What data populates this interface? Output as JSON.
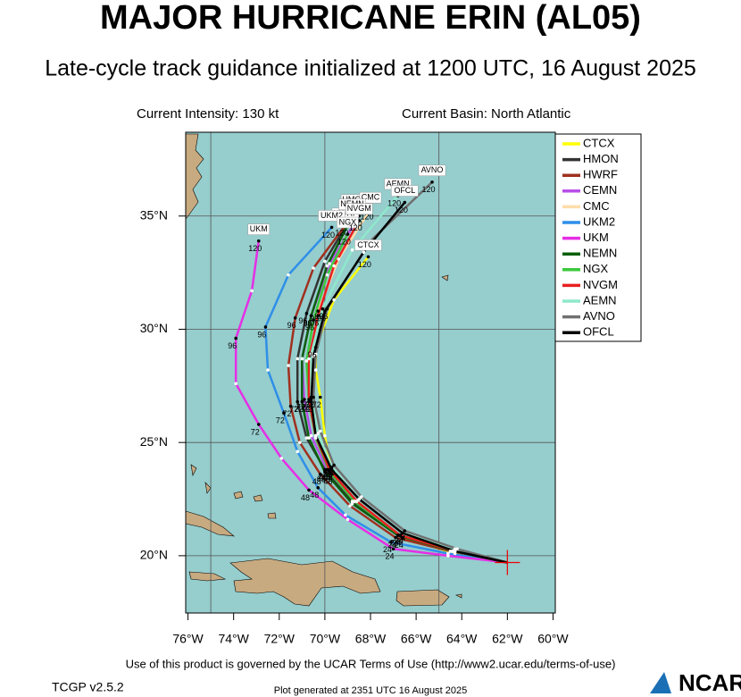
{
  "chart_data": {
    "type": "track",
    "title": "MAJOR HURRICANE ERIN (AL05)",
    "subtitle": "Late-cycle track guidance initialized at 1200 UTC, 16 August 2025",
    "intensity": "Current Intensity: 130 kt",
    "basin": "Current Basin: North Atlantic",
    "footer": "Use of this product is governed by the UCAR Terms of Use (http://www2.ucar.edu/terms-of-use)",
    "version": "TCGP v2.5.2",
    "generated": "Plot generated at 2351 UTC   16 August 2025",
    "logo": "NCAR",
    "xlim": [
      -76.1,
      -59.9
    ],
    "ylim": [
      17.47,
      38.7
    ],
    "xticks": [
      {
        "value": -76,
        "label": "76°W"
      },
      {
        "value": -74,
        "label": "74°W"
      },
      {
        "value": -72,
        "label": "72°W"
      },
      {
        "value": -70,
        "label": "70°W"
      },
      {
        "value": -68,
        "label": "68°W"
      },
      {
        "value": -66,
        "label": "66°W"
      },
      {
        "value": -64,
        "label": "64°W"
      },
      {
        "value": -62,
        "label": "62°W"
      },
      {
        "value": -60,
        "label": "60°W"
      }
    ],
    "yticks": [
      {
        "value": 20,
        "label": "20°N"
      },
      {
        "value": 25,
        "label": "25°N"
      },
      {
        "value": 30,
        "label": "30°N"
      },
      {
        "value": 35,
        "label": "35°N"
      }
    ],
    "xgrid": [
      -75,
      -70,
      -65
    ],
    "grid": true,
    "legend": "right",
    "hours": [
      0,
      12,
      24,
      36,
      48,
      60,
      72,
      84,
      96,
      108,
      120
    ],
    "labeled_hours": [
      24,
      48,
      72,
      96,
      120
    ],
    "series": [
      {
        "name": "CTCX",
        "color": "#ffff00",
        "lon": [
          -62.0,
          -64.3,
          -66.6,
          -68.6,
          -69.7,
          -70.0,
          -70.2,
          -70.4,
          -70.4,
          -69.6,
          -68.1
        ],
        "lat": [
          19.7,
          20.1,
          20.8,
          22.4,
          23.6,
          25.3,
          27.0,
          28.2,
          29.2,
          31.3,
          33.2
        ]
      },
      {
        "name": "HMON",
        "color": "#333333",
        "lon": [
          -62.0,
          -64.4,
          -66.8,
          -68.8,
          -70.0,
          -70.8,
          -71.2,
          -71.2,
          -70.8,
          -70.0,
          -68.7
        ],
        "lat": [
          19.7,
          20.2,
          20.9,
          22.4,
          23.8,
          25.2,
          26.8,
          28.7,
          30.7,
          33.0,
          35.2
        ]
      },
      {
        "name": "HWRF",
        "color": "#a0301f",
        "lon": [
          -62.0,
          -64.5,
          -66.9,
          -68.9,
          -70.2,
          -71.1,
          -71.5,
          -71.6,
          -71.3,
          -70.5,
          -69.1
        ],
        "lat": [
          19.7,
          20.2,
          20.8,
          22.2,
          23.6,
          25.0,
          26.6,
          28.4,
          30.5,
          32.7,
          34.6
        ]
      },
      {
        "name": "CEMN",
        "color": "#b84fe8",
        "lon": [
          -62.0,
          -64.4,
          -66.7,
          -68.7,
          -69.9,
          -70.6,
          -70.9,
          -71.0,
          -70.6,
          -69.8,
          -68.5
        ],
        "lat": [
          19.7,
          20.2,
          20.9,
          22.4,
          23.8,
          25.3,
          26.9,
          28.7,
          30.6,
          32.9,
          35.0
        ]
      },
      {
        "name": "CMC",
        "color": "#ffdcaa",
        "lon": [
          -62.0,
          -64.3,
          -66.6,
          -68.5,
          -69.7,
          -70.3,
          -70.6,
          -70.6,
          -70.3,
          -69.4,
          -68.0
        ],
        "lat": [
          19.7,
          20.3,
          21.0,
          22.5,
          23.9,
          25.4,
          27.0,
          28.9,
          30.8,
          33.1,
          35.3
        ]
      },
      {
        "name": "UKM2",
        "color": "#2f8fe8",
        "lon": [
          -62.0,
          -64.6,
          -67.1,
          -69.1,
          -70.3,
          -71.2,
          -71.8,
          -72.5,
          -72.6,
          -71.6,
          -69.7
        ],
        "lat": [
          19.7,
          20.1,
          20.6,
          21.8,
          23.0,
          24.6,
          26.3,
          28.2,
          30.1,
          32.4,
          34.5
        ]
      },
      {
        "name": "UKM",
        "color": "#e62ee6",
        "lon": [
          -62.0,
          -64.6,
          -67.0,
          -69.0,
          -70.7,
          -71.9,
          -72.9,
          -73.9,
          -73.9,
          -73.2,
          -72.9
        ],
        "lat": [
          19.7,
          20.0,
          20.3,
          21.6,
          22.9,
          24.3,
          25.8,
          27.6,
          29.6,
          31.7,
          33.9
        ]
      },
      {
        "name": "NEMN",
        "color": "#0a5f0a",
        "lon": [
          -62.0,
          -64.4,
          -66.8,
          -68.8,
          -70.0,
          -70.7,
          -71.0,
          -71.0,
          -70.6,
          -69.9,
          -68.8
        ],
        "lat": [
          19.7,
          20.2,
          20.9,
          22.3,
          23.7,
          25.2,
          26.8,
          28.7,
          30.6,
          32.8,
          35.0
        ]
      },
      {
        "name": "NGX",
        "color": "#3cc83c",
        "lon": [
          -62.0,
          -64.3,
          -66.7,
          -68.7,
          -69.8,
          -70.4,
          -70.7,
          -70.8,
          -70.5,
          -69.9,
          -69.0
        ],
        "lat": [
          19.7,
          20.2,
          20.9,
          22.4,
          23.7,
          25.2,
          26.8,
          28.6,
          30.4,
          32.4,
          34.2
        ]
      },
      {
        "name": "NVGM",
        "color": "#e82020",
        "lon": [
          -62.0,
          -64.3,
          -66.7,
          -68.6,
          -69.8,
          -70.4,
          -70.7,
          -70.7,
          -70.3,
          -69.6,
          -68.5
        ],
        "lat": [
          19.7,
          20.2,
          20.9,
          22.4,
          23.8,
          25.3,
          26.9,
          28.7,
          30.6,
          32.8,
          34.8
        ]
      },
      {
        "name": "AEMN",
        "color": "#8fe8cc",
        "lon": [
          -62.0,
          -64.3,
          -66.6,
          -68.5,
          -69.7,
          -70.3,
          -70.6,
          -70.6,
          -70.1,
          -68.8,
          -66.8
        ],
        "lat": [
          19.7,
          20.3,
          21.0,
          22.5,
          23.9,
          25.4,
          27.0,
          28.9,
          30.9,
          33.5,
          35.9
        ]
      },
      {
        "name": "AVNO",
        "color": "#707070",
        "lon": [
          -62.0,
          -64.2,
          -66.5,
          -68.4,
          -69.6,
          -70.2,
          -70.5,
          -70.4,
          -69.9,
          -68.0,
          -65.3
        ],
        "lat": [
          19.7,
          20.3,
          21.1,
          22.6,
          24.0,
          25.5,
          27.0,
          28.9,
          30.9,
          33.9,
          36.5
        ]
      },
      {
        "name": "OFCL",
        "color": "#000000",
        "lon": [
          -62.0,
          -64.3,
          -66.6,
          -68.5,
          -69.7,
          -70.4,
          -70.6,
          -70.5,
          -70.0,
          -68.3,
          -66.5
        ],
        "lat": [
          19.7,
          20.2,
          21.0,
          22.5,
          23.8,
          25.3,
          26.8,
          28.8,
          30.8,
          33.4,
          35.6
        ]
      }
    ]
  }
}
